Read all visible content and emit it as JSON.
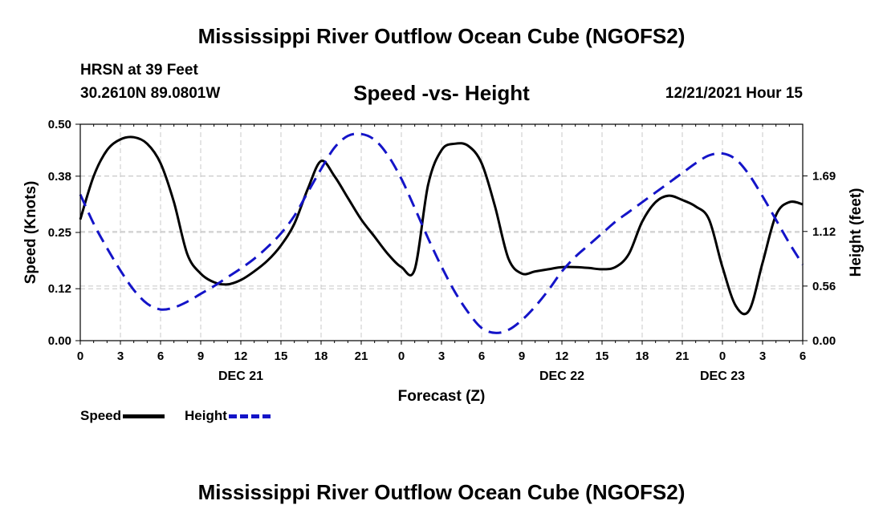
{
  "header": {
    "title": "Mississippi River Outflow Ocean Cube (NGOFS2)",
    "station": "HRSN at 39 Feet",
    "coords": "30.2610N  89.0801W",
    "subtitle": "Speed -vs- Height",
    "datetime": "12/21/2021 Hour 15"
  },
  "footer": {
    "repeat_title": "Mississippi River Outflow Ocean Cube (NGOFS2)"
  },
  "legend": {
    "speed_label": "Speed",
    "height_label": "Height"
  },
  "colors": {
    "speed": "#000000",
    "height": "#1414c8",
    "grid": "#c8c8c8"
  },
  "chart_data": {
    "type": "line",
    "title": "Speed -vs- Height",
    "xlabel": "Forecast (Z)",
    "ylabel": "Speed (Knots)",
    "y2label": "Height (feet)",
    "x_range_hours": [
      0,
      54
    ],
    "ylim": [
      0,
      0.5
    ],
    "y2lim": [
      0,
      2.22
    ],
    "x_tick_labels": [
      "0",
      "3",
      "6",
      "9",
      "12",
      "15",
      "18",
      "21",
      "0",
      "3",
      "6",
      "9",
      "12",
      "15",
      "18",
      "21",
      "0",
      "3",
      "6"
    ],
    "date_labels": [
      {
        "hour": 12,
        "label": "DEC 21"
      },
      {
        "hour": 36,
        "label": "DEC 22"
      },
      {
        "hour": 48,
        "label": "DEC 23"
      }
    ],
    "y_ticks": [
      "0.00",
      "0.12",
      "0.25",
      "0.38",
      "0.50"
    ],
    "y2_ticks": [
      "0.00",
      "0.56",
      "1.12",
      "1.69"
    ],
    "series": [
      {
        "name": "Speed",
        "axis": "left",
        "style": "solid",
        "x": [
          0,
          1,
          2,
          3,
          4,
          5,
          6,
          7,
          8,
          9,
          10,
          11,
          12,
          13,
          14,
          15,
          16,
          17,
          18,
          19,
          20,
          21,
          22,
          23,
          24,
          25,
          26,
          27,
          28,
          29,
          30,
          31,
          32,
          33,
          34,
          35,
          36,
          37,
          38,
          39,
          40,
          41,
          42,
          43,
          44,
          45,
          46,
          47,
          48,
          49,
          50,
          51,
          52,
          53,
          54
        ],
        "values": [
          0.28,
          0.38,
          0.44,
          0.465,
          0.47,
          0.455,
          0.41,
          0.32,
          0.2,
          0.155,
          0.135,
          0.13,
          0.14,
          0.16,
          0.185,
          0.22,
          0.27,
          0.35,
          0.415,
          0.38,
          0.33,
          0.28,
          0.24,
          0.2,
          0.17,
          0.165,
          0.36,
          0.44,
          0.455,
          0.45,
          0.41,
          0.31,
          0.19,
          0.155,
          0.16,
          0.165,
          0.17,
          0.17,
          0.168,
          0.165,
          0.17,
          0.2,
          0.275,
          0.32,
          0.335,
          0.325,
          0.31,
          0.28,
          0.17,
          0.08,
          0.07,
          0.18,
          0.29,
          0.32,
          0.315
        ]
      },
      {
        "name": "Height",
        "axis": "right",
        "style": "dashed",
        "x": [
          0,
          1,
          2,
          3,
          4,
          5,
          6,
          7,
          8,
          9,
          10,
          11,
          12,
          13,
          14,
          15,
          16,
          17,
          18,
          19,
          20,
          21,
          22,
          23,
          24,
          25,
          26,
          27,
          28,
          29,
          30,
          31,
          32,
          33,
          34,
          35,
          36,
          37,
          38,
          39,
          40,
          41,
          42,
          43,
          44,
          45,
          46,
          47,
          48,
          49,
          50,
          51,
          52,
          53,
          54
        ],
        "values": [
          1.5,
          1.2,
          0.95,
          0.72,
          0.52,
          0.38,
          0.32,
          0.34,
          0.4,
          0.48,
          0.56,
          0.65,
          0.74,
          0.84,
          0.96,
          1.1,
          1.28,
          1.52,
          1.76,
          1.98,
          2.1,
          2.12,
          2.06,
          1.9,
          1.66,
          1.36,
          1.05,
          0.76,
          0.5,
          0.29,
          0.13,
          0.08,
          0.11,
          0.21,
          0.35,
          0.52,
          0.71,
          0.86,
          0.98,
          1.1,
          1.22,
          1.32,
          1.42,
          1.52,
          1.62,
          1.72,
          1.82,
          1.9,
          1.92,
          1.86,
          1.7,
          1.48,
          1.24,
          1.0,
          0.78
        ]
      }
    ]
  }
}
